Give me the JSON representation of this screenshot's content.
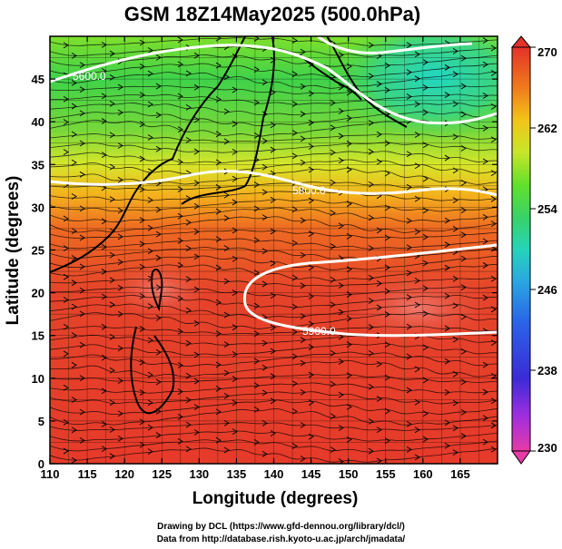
{
  "title": "GSM 18Z14May2025 (500.0hPa)",
  "x_axis_label": "Longitude (degrees)",
  "y_axis_label": "Latitude (degrees)",
  "x_ticks": [
    "110",
    "115",
    "120",
    "125",
    "130",
    "135",
    "140",
    "145",
    "150",
    "155",
    "160",
    "165"
  ],
  "y_ticks": [
    "0",
    "5",
    "10",
    "15",
    "20",
    "25",
    "30",
    "35",
    "40",
    "45"
  ],
  "colorbar": {
    "ticks": [
      "230",
      "238",
      "246",
      "254",
      "262",
      "270"
    ],
    "colors": [
      "#e83aa6",
      "#9b2ee0",
      "#3b2bd6",
      "#2a64e8",
      "#2aa7e0",
      "#26d4b9",
      "#38d266",
      "#63e02a",
      "#c8e52a",
      "#f3c41a",
      "#f07a1c",
      "#e3322a"
    ]
  },
  "contours": [
    {
      "label": "5900.0"
    },
    {
      "label": "5800.0"
    },
    {
      "label": "5600.0"
    }
  ],
  "credit_line1": "Drawing by DCL (https://www.gfd-dennou.org/library/dcl/)",
  "credit_line2": "Data from http://database.rish.kyoto-u.ac.jp/arch/jmadata/",
  "chart_data": {
    "type": "heatmap",
    "title": "GSM 18Z14May2025 (500.0hPa)",
    "xlabel": "Longitude (degrees)",
    "ylabel": "Latitude (degrees)",
    "xlim": [
      110,
      170
    ],
    "ylim": [
      0,
      50
    ],
    "color_range": [
      230,
      270
    ],
    "colorbar_ticks": [
      230,
      238,
      246,
      254,
      262,
      270
    ],
    "contour_levels": [
      5600,
      5800,
      5900
    ],
    "fields": [
      "temperature (K)",
      "geopotential height (m)",
      "wind streamlines"
    ]
  }
}
